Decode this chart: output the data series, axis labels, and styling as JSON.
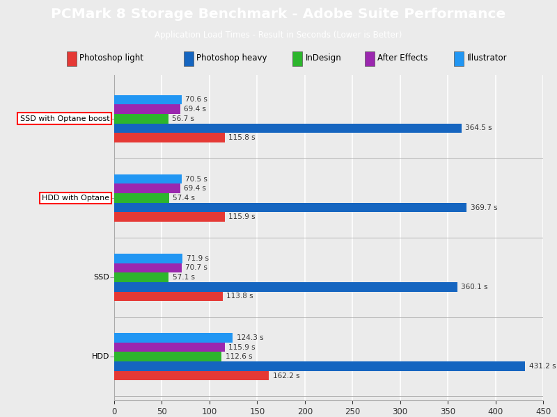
{
  "title": "PCMark 8 Storage Benchmark - Adobe Suite Performance",
  "subtitle": "Application Load Times - Result in Seconds (Lower is Better)",
  "categories": [
    "SSD with Optane boost",
    "HDD with Optane",
    "SSD",
    "HDD"
  ],
  "series": [
    {
      "name": "Illustrator",
      "color": "#2196F3",
      "values": [
        70.6,
        70.5,
        71.9,
        124.3
      ]
    },
    {
      "name": "After Effects",
      "color": "#9B27AF",
      "values": [
        69.4,
        69.4,
        70.7,
        115.9
      ]
    },
    {
      "name": "InDesign",
      "color": "#2DB52D",
      "values": [
        56.7,
        57.4,
        57.1,
        112.6
      ]
    },
    {
      "name": "Photoshop heavy",
      "color": "#1565C0",
      "values": [
        364.5,
        369.7,
        360.1,
        431.2
      ]
    },
    {
      "name": "Photoshop light",
      "color": "#E53935",
      "values": [
        115.8,
        115.9,
        113.8,
        162.2
      ]
    }
  ],
  "legend_series": [
    {
      "name": "Photoshop light",
      "color": "#E53935"
    },
    {
      "name": "Photoshop heavy",
      "color": "#1565C0"
    },
    {
      "name": "InDesign",
      "color": "#2DB52D"
    },
    {
      "name": "After Effects",
      "color": "#9B27AF"
    },
    {
      "name": "Illustrator",
      "color": "#2196F3"
    }
  ],
  "xlim": [
    0,
    450
  ],
  "xticks": [
    0,
    50,
    100,
    150,
    200,
    250,
    300,
    350,
    400,
    450
  ],
  "header_bg": "#1BA8E0",
  "header_text_color": "#FFFFFF",
  "bg_color": "#EBEBEB",
  "outlined_labels": [
    "SSD with Optane boost",
    "HDD with Optane"
  ],
  "bar_height": 0.12,
  "label_fontsize": 8.0,
  "value_fontsize": 7.5
}
